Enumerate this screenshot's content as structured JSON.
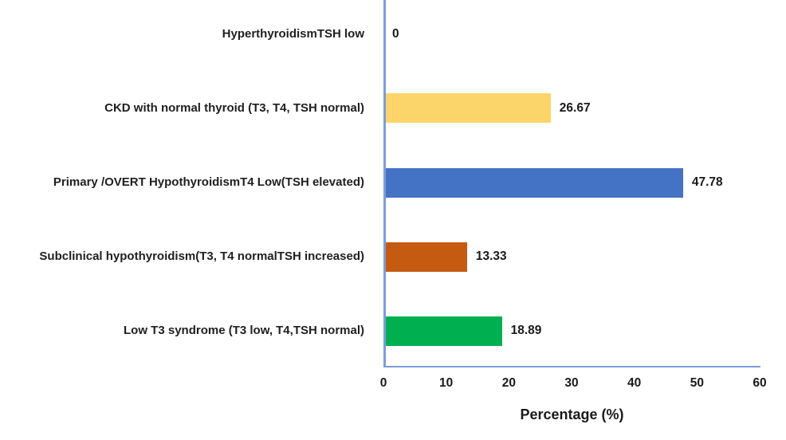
{
  "chart_data": {
    "type": "bar",
    "orientation": "horizontal",
    "title": "",
    "xlabel": "Percentage (%)",
    "ylabel": "",
    "xlim": [
      0,
      60
    ],
    "xticks": [
      "0",
      "10",
      "20",
      "30",
      "40",
      "50",
      "60"
    ],
    "grid": false,
    "legend": "none",
    "categories": [
      "HyperthyroidismTSH low",
      "CKD with normal thyroid (T3, T4, TSH normal)",
      "Primary /OVERT HypothyroidismT4 Low(TSH elevated)",
      "Subclinical hypothyroidism(T3, T4 normalTSH increased)",
      "Low T3 syndrome (T3 low, T4,TSH normal)"
    ],
    "values": [
      0,
      26.67,
      47.78,
      13.33,
      18.89
    ],
    "data_labels": [
      "0",
      "26.67",
      "47.78",
      "13.33",
      "18.89"
    ],
    "bar_colors": [
      null,
      "#FBD569",
      "#4472C4",
      "#C55A11",
      "#00B050"
    ],
    "axis_color": "#7E9CD6",
    "text_color": "#1a1a1a"
  }
}
